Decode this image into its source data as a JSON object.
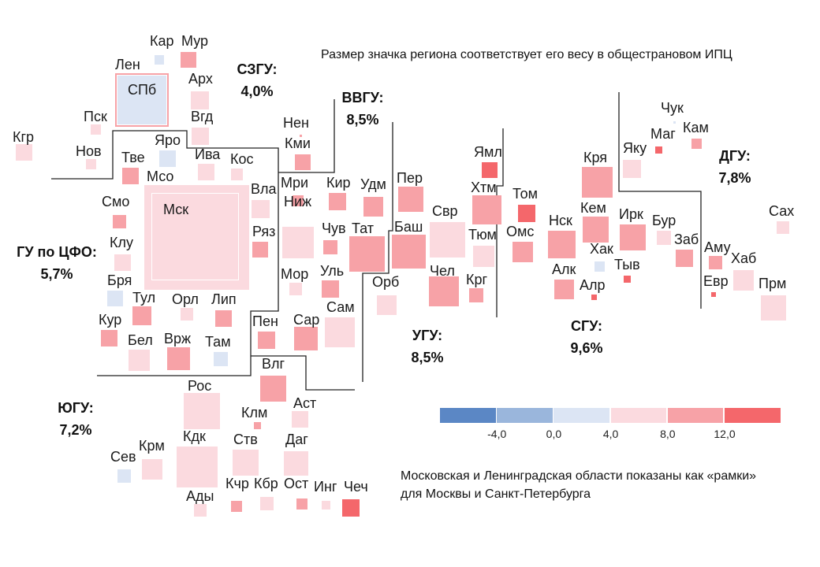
{
  "title": "Размер значка региона соответствует его весу в общестрановом ИПЦ",
  "footnote": [
    "Московская и Ленинградская области показаны как «рамки»",
    "для Москвы и Санкт-Петербурга"
  ],
  "legend": {
    "colors": [
      "#5b87c5",
      "#9ab6dc",
      "#dce5f4",
      "#fbdadf",
      "#f7a2a7",
      "#f4676b"
    ],
    "ticks": [
      "-4,0",
      "0,0",
      "4,0",
      "8,0",
      "12,0"
    ]
  },
  "districts": [
    {
      "name": "СЗГУ:",
      "value": "4,0%"
    },
    {
      "name": "ВВГУ:",
      "value": "8,5%"
    },
    {
      "name": "ГУ по ЦФО:",
      "value": "5,7%"
    },
    {
      "name": "УГУ:",
      "value": "8,5%"
    },
    {
      "name": "СГУ:",
      "value": "9,6%"
    },
    {
      "name": "ДГУ:",
      "value": "7,8%"
    },
    {
      "name": "ЮГУ:",
      "value": "7,2%"
    }
  ],
  "regions": [
    {
      "name": "Кар",
      "bin": 2
    },
    {
      "name": "Мур",
      "bin": 4
    },
    {
      "name": "Лен",
      "bin": 4,
      "frame": true
    },
    {
      "name": "СПб",
      "bin": 2
    },
    {
      "name": "Арх",
      "bin": 3
    },
    {
      "name": "Пск",
      "bin": 3
    },
    {
      "name": "Вгд",
      "bin": 3
    },
    {
      "name": "Кгр",
      "bin": 3
    },
    {
      "name": "Нов",
      "bin": 3
    },
    {
      "name": "Яро",
      "bin": 2
    },
    {
      "name": "Ива",
      "bin": 3
    },
    {
      "name": "Кос",
      "bin": 3
    },
    {
      "name": "Тве",
      "bin": 4
    },
    {
      "name": "Мсо",
      "bin": 3,
      "frame": true
    },
    {
      "name": "Мск",
      "bin": 3
    },
    {
      "name": "Нен",
      "bin": 4
    },
    {
      "name": "Кми",
      "bin": 4
    },
    {
      "name": "Вла",
      "bin": 3
    },
    {
      "name": "Мри",
      "bin": 4
    },
    {
      "name": "Кир",
      "bin": 4
    },
    {
      "name": "Удм",
      "bin": 4
    },
    {
      "name": "Смо",
      "bin": 4
    },
    {
      "name": "Ряз",
      "bin": 4
    },
    {
      "name": "Ниж",
      "bin": 3
    },
    {
      "name": "Чув",
      "bin": 4
    },
    {
      "name": "Тат",
      "bin": 4
    },
    {
      "name": "Клу",
      "bin": 3
    },
    {
      "name": "Бря",
      "bin": 2
    },
    {
      "name": "Мор",
      "bin": 3
    },
    {
      "name": "Уль",
      "bin": 4
    },
    {
      "name": "Орб",
      "bin": 3
    },
    {
      "name": "Тул",
      "bin": 4
    },
    {
      "name": "Орл",
      "bin": 3
    },
    {
      "name": "Лип",
      "bin": 4
    },
    {
      "name": "Сам",
      "bin": 3
    },
    {
      "name": "Кур",
      "bin": 4
    },
    {
      "name": "Пен",
      "bin": 4
    },
    {
      "name": "Сар",
      "bin": 4
    },
    {
      "name": "Бел",
      "bin": 3
    },
    {
      "name": "Врж",
      "bin": 4
    },
    {
      "name": "Там",
      "bin": 2
    },
    {
      "name": "Влг",
      "bin": 4
    },
    {
      "name": "Рос",
      "bin": 3
    },
    {
      "name": "Аст",
      "bin": 3
    },
    {
      "name": "Клм",
      "bin": 4
    },
    {
      "name": "Кдк",
      "bin": 3
    },
    {
      "name": "Ств",
      "bin": 3
    },
    {
      "name": "Даг",
      "bin": 3
    },
    {
      "name": "Сев",
      "bin": 2
    },
    {
      "name": "Крм",
      "bin": 3
    },
    {
      "name": "Ады",
      "bin": 3
    },
    {
      "name": "Кчр",
      "bin": 4
    },
    {
      "name": "Кбр",
      "bin": 3
    },
    {
      "name": "Ост",
      "bin": 4
    },
    {
      "name": "Инг",
      "bin": 3
    },
    {
      "name": "Чеч",
      "bin": 5
    },
    {
      "name": "Пер",
      "bin": 4
    },
    {
      "name": "Свр",
      "bin": 3
    },
    {
      "name": "Баш",
      "bin": 4
    },
    {
      "name": "Ямл",
      "bin": 5
    },
    {
      "name": "Хтм",
      "bin": 4
    },
    {
      "name": "Тюм",
      "bin": 3
    },
    {
      "name": "Чел",
      "bin": 4
    },
    {
      "name": "Крг",
      "bin": 4
    },
    {
      "name": "Том",
      "bin": 5
    },
    {
      "name": "Омс",
      "bin": 4
    },
    {
      "name": "Нск",
      "bin": 4
    },
    {
      "name": "Кря",
      "bin": 4
    },
    {
      "name": "Кем",
      "bin": 4
    },
    {
      "name": "Хак",
      "bin": 2
    },
    {
      "name": "Ирк",
      "bin": 4
    },
    {
      "name": "Бур",
      "bin": 3
    },
    {
      "name": "Заб",
      "bin": 4
    },
    {
      "name": "Тыв",
      "bin": 5
    },
    {
      "name": "Алк",
      "bin": 4
    },
    {
      "name": "Алр",
      "bin": 5
    },
    {
      "name": "Яку",
      "bin": 3
    },
    {
      "name": "Маг",
      "bin": 5
    },
    {
      "name": "Чук",
      "bin": 2
    },
    {
      "name": "Кам",
      "bin": 4
    },
    {
      "name": "Аму",
      "bin": 4
    },
    {
      "name": "Хаб",
      "bin": 3
    },
    {
      "name": "Евр",
      "bin": 5
    },
    {
      "name": "Прм",
      "bin": 3
    },
    {
      "name": "Сах",
      "bin": 3
    }
  ]
}
